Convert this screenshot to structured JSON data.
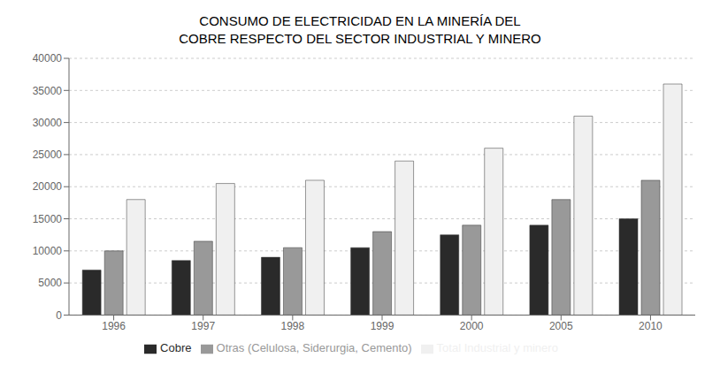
{
  "chart_data": {
    "type": "bar",
    "title": "CONSUMO DE ELECTRICIDAD EN LA MINERÍA DEL",
    "subtitle": "COBRE RESPECTO DEL SECTOR INDUSTRIAL Y MINERO",
    "categories": [
      "1996",
      "1997",
      "1998",
      "1999",
      "2000",
      "2005",
      "2010"
    ],
    "series": [
      {
        "name": "Cobre",
        "color": "#2a2a2a",
        "values": [
          7000,
          8500,
          9000,
          10500,
          12500,
          14000,
          15000
        ]
      },
      {
        "name": "Otras (Celulosa, Siderurgia, Cemento)",
        "color": "#999999",
        "values": [
          10000,
          11500,
          10500,
          13000,
          14000,
          18000,
          21000
        ]
      },
      {
        "name": "Total Industrial y minero",
        "color": "#f0f0f0",
        "values": [
          18000,
          20500,
          21000,
          24000,
          26000,
          31000,
          36000
        ]
      }
    ],
    "ylim": [
      0,
      40000
    ],
    "yticks": [
      0,
      5000,
      10000,
      15000,
      20000,
      25000,
      30000,
      35000,
      40000
    ],
    "grid": true,
    "legend": "bottom"
  }
}
